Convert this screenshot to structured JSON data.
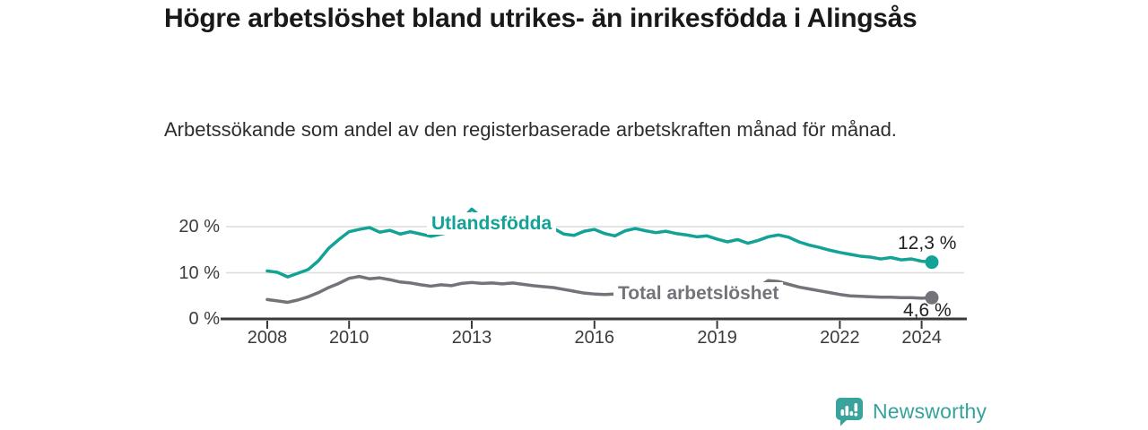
{
  "page": {
    "title": "Högre arbetslöshet bland utrikes- än inrikesfödda i Alingsås",
    "subtitle": "Arbetssökande som andel av den registerbaserade arbetskraften månad för månad."
  },
  "chart_data": {
    "type": "line",
    "title": "Högre arbetslöshet bland utrikes- än inrikesfödda i Alingsås",
    "subtitle": "Arbetssökande som andel av den registerbaserade arbetskraften månad för månad.",
    "x_unit": "year",
    "x": [
      2008.0,
      2008.25,
      2008.5,
      2008.75,
      2009.0,
      2009.25,
      2009.5,
      2009.75,
      2010.0,
      2010.25,
      2010.5,
      2010.75,
      2011.0,
      2011.25,
      2011.5,
      2011.75,
      2012.0,
      2012.25,
      2012.5,
      2012.75,
      2013.0,
      2013.25,
      2013.5,
      2013.75,
      2014.0,
      2014.25,
      2014.5,
      2014.75,
      2015.0,
      2015.25,
      2015.5,
      2015.75,
      2016.0,
      2016.25,
      2016.5,
      2016.75,
      2017.0,
      2017.25,
      2017.5,
      2017.75,
      2018.0,
      2018.25,
      2018.5,
      2018.75,
      2019.0,
      2019.25,
      2019.5,
      2019.75,
      2020.0,
      2020.25,
      2020.5,
      2020.75,
      2021.0,
      2021.25,
      2021.5,
      2021.75,
      2022.0,
      2022.25,
      2022.5,
      2022.75,
      2023.0,
      2023.25,
      2023.5,
      2023.75,
      2024.0,
      2024.25
    ],
    "series": [
      {
        "name": "Utlandsfödda",
        "color": "#12a296",
        "end_value": 12.3,
        "end_value_label": "12,3 %",
        "values": [
          10.4,
          10.1,
          9.1,
          9.9,
          10.7,
          12.6,
          15.3,
          17.2,
          18.9,
          19.4,
          19.8,
          18.8,
          19.2,
          18.4,
          18.9,
          18.4,
          17.9,
          18.4,
          18.8,
          21.5,
          23.8,
          22.0,
          21.0,
          20.4,
          20.0,
          19.8,
          19.7,
          19.5,
          19.6,
          18.4,
          18.1,
          19.0,
          19.4,
          18.5,
          18.0,
          19.1,
          19.6,
          19.1,
          18.7,
          19.0,
          18.5,
          18.2,
          17.8,
          18.0,
          17.3,
          16.7,
          17.2,
          16.4,
          17.0,
          17.8,
          18.2,
          17.7,
          16.7,
          16.0,
          15.5,
          14.9,
          14.4,
          14.0,
          13.6,
          13.4,
          13.0,
          13.3,
          12.8,
          13.0,
          12.5,
          12.3
        ]
      },
      {
        "name": "Total arbetslöshet",
        "color": "#73737a",
        "end_value": 4.6,
        "end_value_label": "4,6 %",
        "values": [
          4.2,
          3.9,
          3.6,
          4.1,
          4.8,
          5.7,
          6.8,
          7.7,
          8.8,
          9.2,
          8.7,
          8.9,
          8.5,
          8.0,
          7.8,
          7.4,
          7.1,
          7.4,
          7.2,
          7.7,
          7.9,
          7.7,
          7.8,
          7.6,
          7.8,
          7.5,
          7.2,
          7.0,
          6.8,
          6.4,
          6.0,
          5.6,
          5.4,
          5.3,
          5.4,
          5.6,
          5.9,
          6.1,
          6.2,
          6.1,
          6.0,
          5.9,
          5.9,
          5.8,
          5.8,
          5.9,
          6.0,
          6.2,
          6.9,
          8.3,
          8.1,
          7.5,
          6.9,
          6.5,
          6.1,
          5.7,
          5.3,
          5.0,
          4.9,
          4.8,
          4.7,
          4.7,
          4.6,
          4.6,
          4.5,
          4.6
        ]
      }
    ],
    "ylim": [
      0,
      25
    ],
    "yticks": [
      {
        "value": 0,
        "label": "0 %"
      },
      {
        "value": 10,
        "label": "10 %"
      },
      {
        "value": 20,
        "label": "20 %"
      }
    ],
    "xticks": [
      {
        "value": 2008,
        "label": "2008"
      },
      {
        "value": 2010,
        "label": "2010"
      },
      {
        "value": 2013,
        "label": "2013"
      },
      {
        "value": 2016,
        "label": "2016"
      },
      {
        "value": 2019,
        "label": "2019"
      },
      {
        "value": 2022,
        "label": "2022"
      },
      {
        "value": 2024,
        "label": "2024"
      }
    ],
    "grid": "horizontal-y",
    "legend": "inline-series-labels"
  },
  "footer": {
    "brand": "Newsworthy",
    "brand_color": "#35a29b",
    "logo_icon": "bar-chart-speech-bubble-icon"
  }
}
